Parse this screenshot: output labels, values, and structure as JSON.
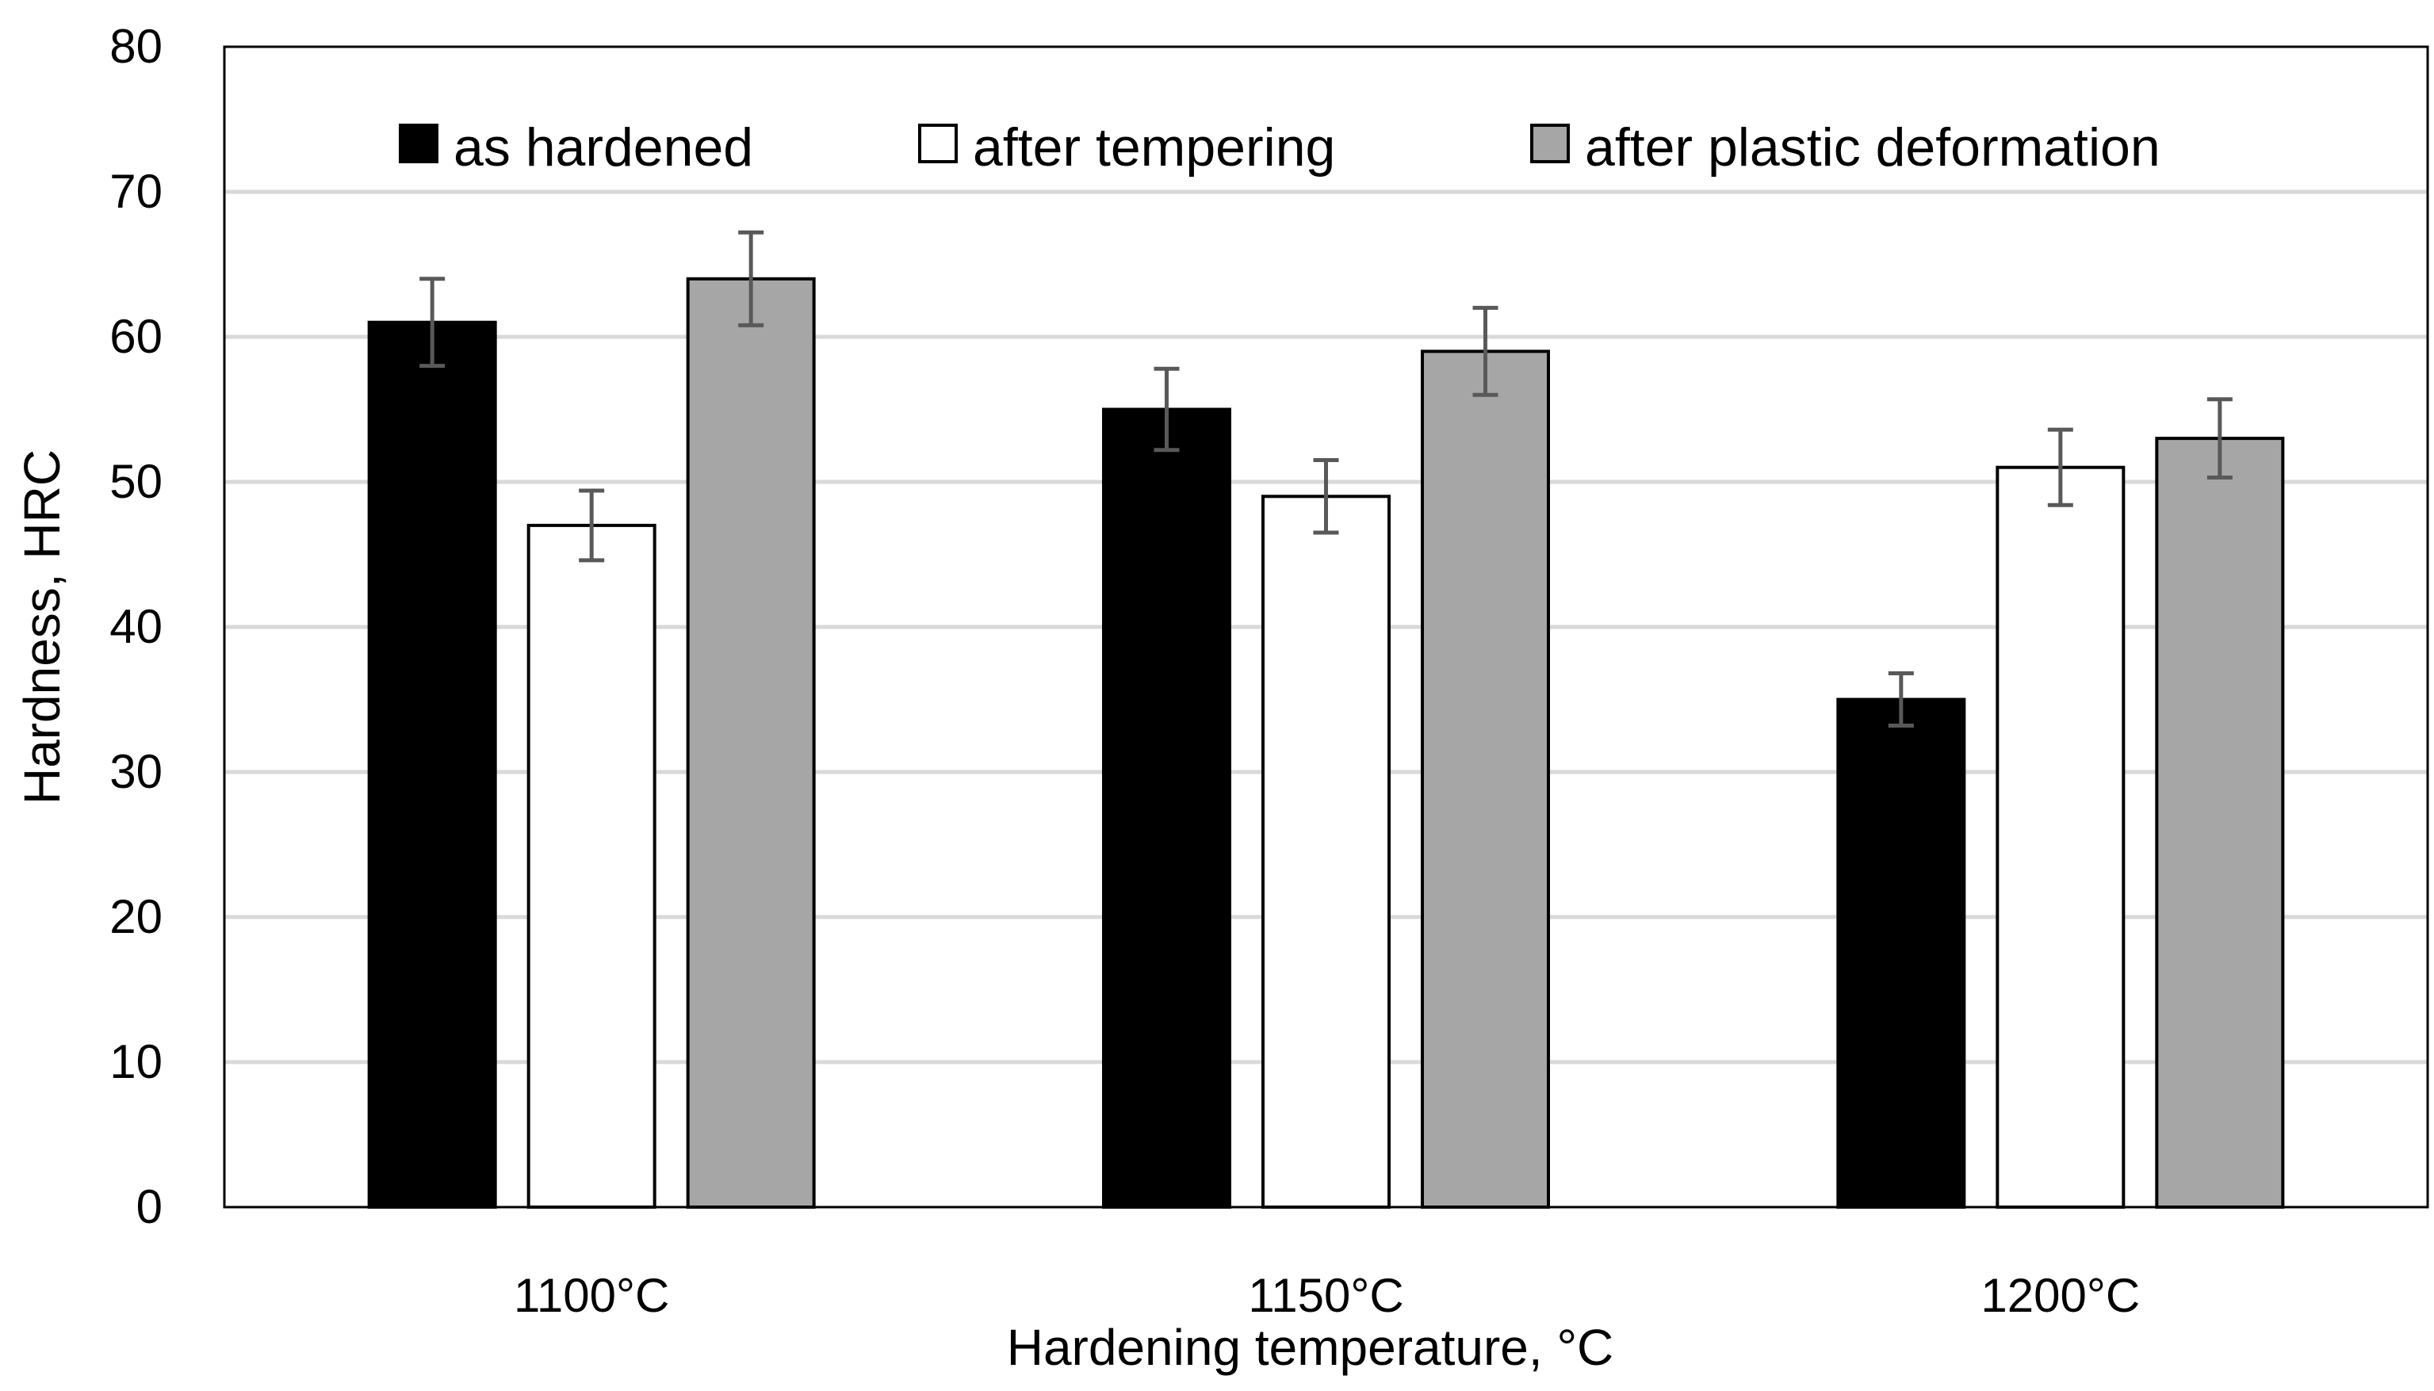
{
  "chart_data": {
    "type": "bar",
    "title": "",
    "xlabel": "Hardening temperature, °C",
    "ylabel": "Hardness, HRC",
    "ylim": [
      0,
      80
    ],
    "yticks": [
      0,
      10,
      20,
      30,
      40,
      50,
      60,
      70,
      80
    ],
    "grid": true,
    "legend_position": "top",
    "categories": [
      "1100°C",
      "1150°C",
      "1200°C"
    ],
    "series": [
      {
        "name": "as hardened",
        "color": "#000000",
        "values": [
          61,
          55,
          35
        ],
        "errors": [
          3.0,
          2.8,
          1.8
        ]
      },
      {
        "name": "after tempering",
        "color": "#ffffff",
        "values": [
          47,
          49,
          51
        ],
        "errors": [
          2.4,
          2.5,
          2.6
        ]
      },
      {
        "name": "after plastic deformation",
        "color": "#a6a6a6",
        "values": [
          64,
          59,
          53
        ],
        "errors": [
          3.2,
          3.0,
          2.7
        ]
      }
    ],
    "colors": {
      "gridline": "#d9d9d9",
      "errorbar": "#595959",
      "frame": "#000000"
    }
  }
}
